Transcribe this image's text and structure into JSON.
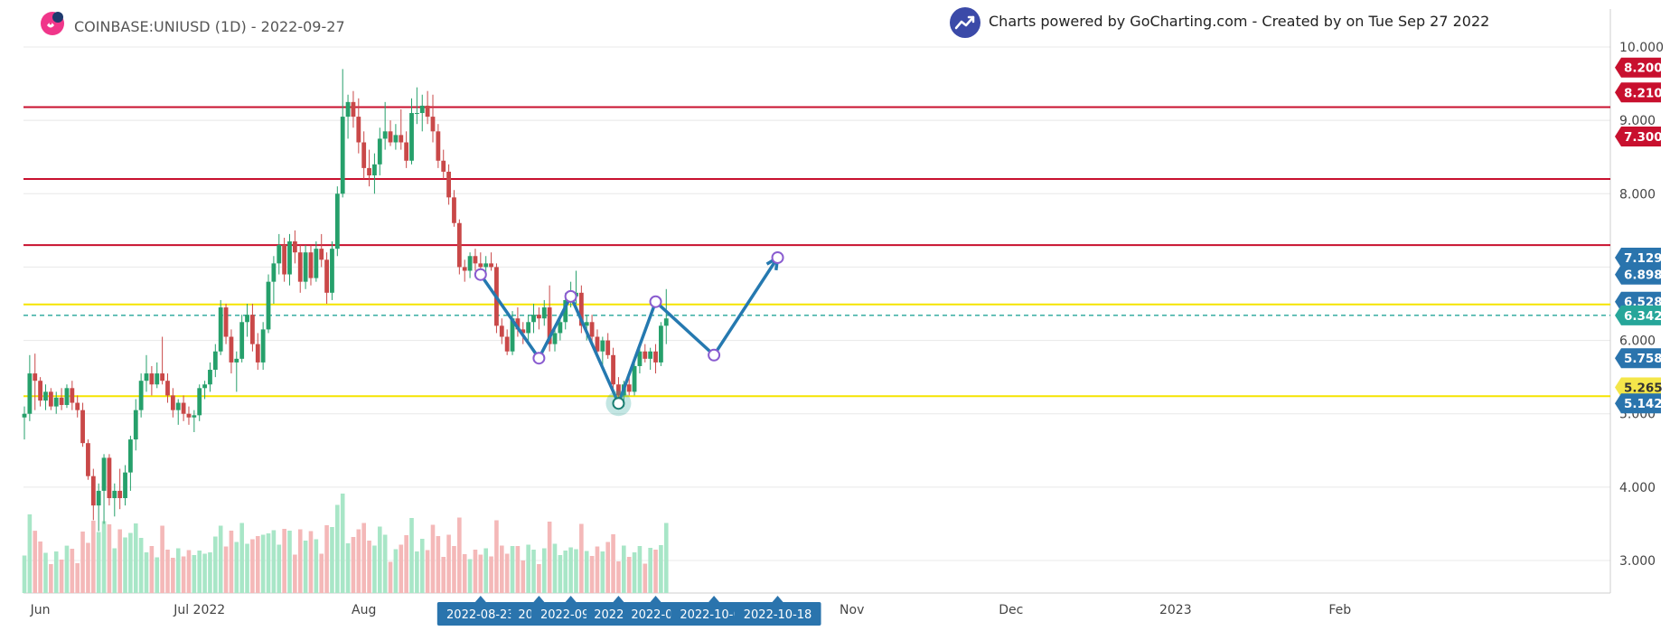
{
  "header": {
    "symbol_title": "COINBASE:UNIUSD (1D) - 2022-09-27",
    "credit": "Charts powered by GoCharting.com - Created by  on Tue Sep 27 2022"
  },
  "colors": {
    "up": "#26a06b",
    "down": "#c94848",
    "vol_up": "#a8e6c7",
    "vol_down": "#f4b8b8",
    "resistance_line": "#c8102e",
    "support_line": "#f5e400",
    "current_line": "#26a69a",
    "pattern_line": "#2579b0",
    "pattern_node": "#8a5cd0",
    "badge_red": "#c8102e",
    "badge_blue": "#2a74ad",
    "badge_green": "#26a69a",
    "badge_yellow": "#f4e64a",
    "axis_text": "#444444",
    "grid": "#e8e8e8"
  },
  "chart_data": {
    "type": "candlestick",
    "title": "COINBASE:UNIUSD (1D) - 2022-09-27",
    "xlabel": "",
    "ylabel": "",
    "ylim": [
      2.6,
      10.2
    ],
    "grid": true,
    "y_ticks": [
      "10.000",
      "9.000",
      "8.000",
      "6.000",
      "5.000",
      "4.000",
      "3.000"
    ],
    "x_ticks": [
      "Jun",
      "Jul 2022",
      "Aug",
      "Nov",
      "Dec",
      "2023",
      "Feb"
    ],
    "candles": [
      {
        "date": "2022-05-29",
        "o": 4.95,
        "h": 5.1,
        "l": 4.65,
        "c": 5.0
      },
      {
        "date": "2022-05-30",
        "o": 5.0,
        "h": 5.8,
        "l": 4.9,
        "c": 5.55
      },
      {
        "date": "2022-05-31",
        "o": 5.55,
        "h": 5.82,
        "l": 5.05,
        "c": 5.45
      },
      {
        "date": "2022-06-01",
        "o": 5.45,
        "h": 5.5,
        "l": 5.1,
        "c": 5.18
      },
      {
        "date": "2022-06-02",
        "o": 5.18,
        "h": 5.4,
        "l": 5.05,
        "c": 5.3
      },
      {
        "date": "2022-06-03",
        "o": 5.3,
        "h": 5.35,
        "l": 5.05,
        "c": 5.1
      },
      {
        "date": "2022-06-04",
        "o": 5.1,
        "h": 5.3,
        "l": 5.0,
        "c": 5.22
      },
      {
        "date": "2022-06-05",
        "o": 5.22,
        "h": 5.35,
        "l": 5.05,
        "c": 5.12
      },
      {
        "date": "2022-06-06",
        "o": 5.12,
        "h": 5.4,
        "l": 5.08,
        "c": 5.35
      },
      {
        "date": "2022-06-07",
        "o": 5.35,
        "h": 5.45,
        "l": 5.05,
        "c": 5.15
      },
      {
        "date": "2022-06-08",
        "o": 5.15,
        "h": 5.25,
        "l": 4.95,
        "c": 5.05
      },
      {
        "date": "2022-06-09",
        "o": 5.05,
        "h": 5.15,
        "l": 4.55,
        "c": 4.6
      },
      {
        "date": "2022-06-10",
        "o": 4.6,
        "h": 4.65,
        "l": 4.1,
        "c": 4.15
      },
      {
        "date": "2022-06-11",
        "o": 4.15,
        "h": 4.25,
        "l": 3.55,
        "c": 3.75
      },
      {
        "date": "2022-06-12",
        "o": 3.75,
        "h": 4.05,
        "l": 3.4,
        "c": 3.95
      },
      {
        "date": "2022-06-13",
        "o": 3.95,
        "h": 4.45,
        "l": 3.5,
        "c": 4.4
      },
      {
        "date": "2022-06-14",
        "o": 4.4,
        "h": 4.45,
        "l": 3.75,
        "c": 3.85
      },
      {
        "date": "2022-06-15",
        "o": 3.85,
        "h": 4.05,
        "l": 3.6,
        "c": 3.95
      },
      {
        "date": "2022-06-16",
        "o": 3.95,
        "h": 4.25,
        "l": 3.7,
        "c": 3.85
      },
      {
        "date": "2022-06-17",
        "o": 3.85,
        "h": 4.3,
        "l": 3.75,
        "c": 4.2
      },
      {
        "date": "2022-06-18",
        "o": 4.2,
        "h": 4.7,
        "l": 3.95,
        "c": 4.65
      },
      {
        "date": "2022-06-19",
        "o": 4.65,
        "h": 5.2,
        "l": 4.5,
        "c": 5.05
      },
      {
        "date": "2022-06-20",
        "o": 5.05,
        "h": 5.55,
        "l": 4.95,
        "c": 5.45
      },
      {
        "date": "2022-06-21",
        "o": 5.45,
        "h": 5.8,
        "l": 5.3,
        "c": 5.55
      },
      {
        "date": "2022-06-22",
        "o": 5.55,
        "h": 5.65,
        "l": 5.25,
        "c": 5.4
      },
      {
        "date": "2022-06-23",
        "o": 5.4,
        "h": 5.7,
        "l": 5.35,
        "c": 5.55
      },
      {
        "date": "2022-06-24",
        "o": 5.55,
        "h": 6.05,
        "l": 5.4,
        "c": 5.45
      },
      {
        "date": "2022-06-25",
        "o": 5.45,
        "h": 5.55,
        "l": 5.15,
        "c": 5.25
      },
      {
        "date": "2022-06-26",
        "o": 5.25,
        "h": 5.35,
        "l": 4.95,
        "c": 5.05
      },
      {
        "date": "2022-06-27",
        "o": 5.05,
        "h": 5.2,
        "l": 4.85,
        "c": 5.15
      },
      {
        "date": "2022-06-28",
        "o": 5.15,
        "h": 5.25,
        "l": 4.9,
        "c": 5.0
      },
      {
        "date": "2022-06-29",
        "o": 5.0,
        "h": 5.1,
        "l": 4.85,
        "c": 4.95
      },
      {
        "date": "2022-06-30",
        "o": 4.95,
        "h": 5.05,
        "l": 4.75,
        "c": 4.98
      },
      {
        "date": "2022-07-01",
        "o": 4.98,
        "h": 5.4,
        "l": 4.9,
        "c": 5.35
      },
      {
        "date": "2022-07-02",
        "o": 5.35,
        "h": 5.45,
        "l": 5.2,
        "c": 5.4
      },
      {
        "date": "2022-07-03",
        "o": 5.4,
        "h": 5.7,
        "l": 5.3,
        "c": 5.6
      },
      {
        "date": "2022-07-04",
        "o": 5.6,
        "h": 5.95,
        "l": 5.5,
        "c": 5.85
      },
      {
        "date": "2022-07-05",
        "o": 5.85,
        "h": 6.55,
        "l": 5.8,
        "c": 6.45
      },
      {
        "date": "2022-07-06",
        "o": 6.45,
        "h": 6.5,
        "l": 5.95,
        "c": 6.05
      },
      {
        "date": "2022-07-07",
        "o": 6.05,
        "h": 6.15,
        "l": 5.55,
        "c": 5.7
      },
      {
        "date": "2022-07-08",
        "o": 5.7,
        "h": 5.85,
        "l": 5.3,
        "c": 5.75
      },
      {
        "date": "2022-07-09",
        "o": 5.75,
        "h": 6.35,
        "l": 5.7,
        "c": 6.25
      },
      {
        "date": "2022-07-10",
        "o": 6.25,
        "h": 6.5,
        "l": 6.05,
        "c": 6.35
      },
      {
        "date": "2022-07-11",
        "o": 6.35,
        "h": 6.5,
        "l": 5.85,
        "c": 5.95
      },
      {
        "date": "2022-07-12",
        "o": 5.95,
        "h": 6.1,
        "l": 5.6,
        "c": 5.7
      },
      {
        "date": "2022-07-13",
        "o": 5.7,
        "h": 6.25,
        "l": 5.6,
        "c": 6.15
      },
      {
        "date": "2022-07-14",
        "o": 6.15,
        "h": 6.9,
        "l": 6.1,
        "c": 6.8
      },
      {
        "date": "2022-07-15",
        "o": 6.8,
        "h": 7.15,
        "l": 6.5,
        "c": 7.05
      },
      {
        "date": "2022-07-16",
        "o": 7.05,
        "h": 7.45,
        "l": 6.9,
        "c": 7.3
      },
      {
        "date": "2022-07-17",
        "o": 7.3,
        "h": 7.4,
        "l": 6.8,
        "c": 6.9
      },
      {
        "date": "2022-07-18",
        "o": 6.9,
        "h": 7.45,
        "l": 6.75,
        "c": 7.35
      },
      {
        "date": "2022-07-19",
        "o": 7.35,
        "h": 7.5,
        "l": 7.05,
        "c": 7.2
      },
      {
        "date": "2022-07-20",
        "o": 7.2,
        "h": 7.3,
        "l": 6.65,
        "c": 6.8
      },
      {
        "date": "2022-07-21",
        "o": 6.8,
        "h": 7.3,
        "l": 6.7,
        "c": 7.2
      },
      {
        "date": "2022-07-22",
        "o": 7.2,
        "h": 7.3,
        "l": 6.75,
        "c": 6.85
      },
      {
        "date": "2022-07-23",
        "o": 6.85,
        "h": 7.35,
        "l": 6.8,
        "c": 7.25
      },
      {
        "date": "2022-07-24",
        "o": 7.25,
        "h": 7.45,
        "l": 7.0,
        "c": 7.1
      },
      {
        "date": "2022-07-25",
        "o": 7.1,
        "h": 7.2,
        "l": 6.5,
        "c": 6.65
      },
      {
        "date": "2022-07-26",
        "o": 6.65,
        "h": 7.35,
        "l": 6.55,
        "c": 7.25
      },
      {
        "date": "2022-07-27",
        "o": 7.25,
        "h": 8.1,
        "l": 7.15,
        "c": 8.0
      },
      {
        "date": "2022-07-28",
        "o": 8.0,
        "h": 9.7,
        "l": 7.95,
        "c": 9.05
      },
      {
        "date": "2022-07-29",
        "o": 9.05,
        "h": 9.35,
        "l": 8.75,
        "c": 9.25
      },
      {
        "date": "2022-07-30",
        "o": 9.25,
        "h": 9.4,
        "l": 8.9,
        "c": 9.05
      },
      {
        "date": "2022-07-31",
        "o": 9.05,
        "h": 9.3,
        "l": 8.55,
        "c": 8.7
      },
      {
        "date": "2022-08-01",
        "o": 8.7,
        "h": 8.85,
        "l": 8.2,
        "c": 8.35
      },
      {
        "date": "2022-08-02",
        "o": 8.35,
        "h": 8.6,
        "l": 8.1,
        "c": 8.25
      },
      {
        "date": "2022-08-03",
        "o": 8.25,
        "h": 8.55,
        "l": 8.0,
        "c": 8.4
      },
      {
        "date": "2022-08-04",
        "o": 8.4,
        "h": 8.9,
        "l": 8.25,
        "c": 8.75
      },
      {
        "date": "2022-08-05",
        "o": 8.75,
        "h": 9.25,
        "l": 8.6,
        "c": 8.85
      },
      {
        "date": "2022-08-06",
        "o": 8.85,
        "h": 9.0,
        "l": 8.65,
        "c": 8.7
      },
      {
        "date": "2022-08-07",
        "o": 8.7,
        "h": 8.95,
        "l": 8.6,
        "c": 8.8
      },
      {
        "date": "2022-08-08",
        "o": 8.8,
        "h": 9.15,
        "l": 8.6,
        "c": 8.7
      },
      {
        "date": "2022-08-09",
        "o": 8.7,
        "h": 8.85,
        "l": 8.35,
        "c": 8.45
      },
      {
        "date": "2022-08-10",
        "o": 8.45,
        "h": 9.3,
        "l": 8.4,
        "c": 9.1
      },
      {
        "date": "2022-08-11",
        "o": 9.1,
        "h": 9.45,
        "l": 8.95,
        "c": 9.1
      },
      {
        "date": "2022-08-12",
        "o": 9.1,
        "h": 9.35,
        "l": 8.85,
        "c": 9.2
      },
      {
        "date": "2022-08-13",
        "o": 9.2,
        "h": 9.4,
        "l": 8.95,
        "c": 9.05
      },
      {
        "date": "2022-08-14",
        "o": 9.05,
        "h": 9.35,
        "l": 8.7,
        "c": 8.85
      },
      {
        "date": "2022-08-15",
        "o": 8.85,
        "h": 8.95,
        "l": 8.35,
        "c": 8.45
      },
      {
        "date": "2022-08-16",
        "o": 8.45,
        "h": 8.6,
        "l": 8.2,
        "c": 8.3
      },
      {
        "date": "2022-08-17",
        "o": 8.3,
        "h": 8.4,
        "l": 7.85,
        "c": 7.95
      },
      {
        "date": "2022-08-18",
        "o": 7.95,
        "h": 8.05,
        "l": 7.55,
        "c": 7.6
      },
      {
        "date": "2022-08-19",
        "o": 7.6,
        "h": 7.65,
        "l": 6.9,
        "c": 7.0
      },
      {
        "date": "2022-08-20",
        "o": 7.0,
        "h": 7.1,
        "l": 6.8,
        "c": 6.95
      },
      {
        "date": "2022-08-21",
        "o": 6.95,
        "h": 7.2,
        "l": 6.85,
        "c": 7.15
      },
      {
        "date": "2022-08-22",
        "o": 7.15,
        "h": 7.25,
        "l": 6.95,
        "c": 7.05
      },
      {
        "date": "2022-08-23",
        "o": 7.05,
        "h": 7.2,
        "l": 6.85,
        "c": 7.0
      },
      {
        "date": "2022-08-24",
        "o": 7.0,
        "h": 7.15,
        "l": 6.9,
        "c": 7.05
      },
      {
        "date": "2022-08-25",
        "o": 7.05,
        "h": 7.2,
        "l": 6.95,
        "c": 7.0
      },
      {
        "date": "2022-08-26",
        "o": 7.0,
        "h": 7.05,
        "l": 6.1,
        "c": 6.2
      },
      {
        "date": "2022-08-27",
        "o": 6.2,
        "h": 6.3,
        "l": 5.95,
        "c": 6.05
      },
      {
        "date": "2022-08-28",
        "o": 6.05,
        "h": 6.15,
        "l": 5.8,
        "c": 5.85
      },
      {
        "date": "2022-08-29",
        "o": 5.85,
        "h": 6.4,
        "l": 5.8,
        "c": 6.3
      },
      {
        "date": "2022-08-30",
        "o": 6.3,
        "h": 6.45,
        "l": 6.05,
        "c": 6.15
      },
      {
        "date": "2022-08-31",
        "o": 6.15,
        "h": 6.25,
        "l": 5.95,
        "c": 6.1
      },
      {
        "date": "2022-09-01",
        "o": 6.1,
        "h": 6.35,
        "l": 6.0,
        "c": 6.25
      },
      {
        "date": "2022-09-02",
        "o": 6.25,
        "h": 6.5,
        "l": 6.1,
        "c": 6.35
      },
      {
        "date": "2022-09-03",
        "o": 6.35,
        "h": 6.45,
        "l": 6.15,
        "c": 6.3
      },
      {
        "date": "2022-09-04",
        "o": 6.3,
        "h": 6.55,
        "l": 6.2,
        "c": 6.45
      },
      {
        "date": "2022-09-05",
        "o": 6.45,
        "h": 6.75,
        "l": 5.85,
        "c": 5.95
      },
      {
        "date": "2022-09-06",
        "o": 5.95,
        "h": 6.2,
        "l": 5.85,
        "c": 6.1
      },
      {
        "date": "2022-09-07",
        "o": 6.1,
        "h": 6.3,
        "l": 6.0,
        "c": 6.25
      },
      {
        "date": "2022-09-08",
        "o": 6.25,
        "h": 6.65,
        "l": 6.15,
        "c": 6.55
      },
      {
        "date": "2022-09-09",
        "o": 6.55,
        "h": 6.8,
        "l": 6.45,
        "c": 6.6
      },
      {
        "date": "2022-09-10",
        "o": 6.6,
        "h": 6.95,
        "l": 6.5,
        "c": 6.65
      },
      {
        "date": "2022-09-11",
        "o": 6.65,
        "h": 6.75,
        "l": 6.1,
        "c": 6.2
      },
      {
        "date": "2022-09-12",
        "o": 6.2,
        "h": 6.35,
        "l": 6.0,
        "c": 6.25
      },
      {
        "date": "2022-09-13",
        "o": 6.25,
        "h": 6.35,
        "l": 5.95,
        "c": 6.05
      },
      {
        "date": "2022-09-14",
        "o": 6.05,
        "h": 6.15,
        "l": 5.8,
        "c": 5.85
      },
      {
        "date": "2022-09-15",
        "o": 5.85,
        "h": 6.05,
        "l": 5.65,
        "c": 6.0
      },
      {
        "date": "2022-09-16",
        "o": 6.0,
        "h": 6.1,
        "l": 5.75,
        "c": 5.8
      },
      {
        "date": "2022-09-17",
        "o": 5.8,
        "h": 5.9,
        "l": 5.3,
        "c": 5.4
      },
      {
        "date": "2022-09-18",
        "o": 5.4,
        "h": 5.5,
        "l": 5.2,
        "c": 5.25
      },
      {
        "date": "2022-09-19",
        "o": 5.25,
        "h": 5.45,
        "l": 5.1,
        "c": 5.4
      },
      {
        "date": "2022-09-20",
        "o": 5.4,
        "h": 5.55,
        "l": 5.25,
        "c": 5.3
      },
      {
        "date": "2022-09-21",
        "o": 5.3,
        "h": 5.75,
        "l": 5.25,
        "c": 5.65
      },
      {
        "date": "2022-09-22",
        "o": 5.65,
        "h": 5.95,
        "l": 5.55,
        "c": 5.85
      },
      {
        "date": "2022-09-23",
        "o": 5.85,
        "h": 5.95,
        "l": 5.7,
        "c": 5.75
      },
      {
        "date": "2022-09-24",
        "o": 5.75,
        "h": 5.9,
        "l": 5.6,
        "c": 5.85
      },
      {
        "date": "2022-09-25",
        "o": 5.85,
        "h": 5.95,
        "l": 5.55,
        "c": 5.7
      },
      {
        "date": "2022-09-26",
        "o": 5.7,
        "h": 6.25,
        "l": 5.65,
        "c": 6.2
      },
      {
        "date": "2022-09-27",
        "o": 6.2,
        "h": 6.7,
        "l": 5.95,
        "c": 6.3
      }
    ],
    "volume_scale": [
      0,
      1
    ],
    "horizontal_levels": [
      {
        "value": 9.18,
        "color_key": "resistance_line"
      },
      {
        "value": 8.2,
        "color_key": "resistance_line"
      },
      {
        "value": 7.3,
        "color_key": "resistance_line"
      },
      {
        "value": 6.49,
        "color_key": "support_line"
      },
      {
        "value": 5.24,
        "color_key": "support_line"
      },
      {
        "value": 6.342,
        "color_key": "current_line",
        "dashed": true
      }
    ],
    "pattern_points": [
      {
        "date": "2022-08-23",
        "value": 6.898
      },
      {
        "date": "2022-09-03",
        "value": 5.758
      },
      {
        "date": "2022-09-09",
        "value": 6.6
      },
      {
        "date": "2022-09-18",
        "value": 5.142
      },
      {
        "date": "2022-09-25",
        "value": 6.528
      },
      {
        "date": "2022-10-06",
        "value": 5.8
      },
      {
        "date": "2022-10-18",
        "value": 7.129
      }
    ],
    "price_badges": [
      {
        "label": "8.200",
        "value": 9.72,
        "color_key": "badge_red"
      },
      {
        "label": "8.210",
        "value": 9.38,
        "color_key": "badge_red"
      },
      {
        "label": "7.300",
        "value": 8.78,
        "color_key": "badge_red"
      },
      {
        "label": "7.129",
        "value": 7.129,
        "color_key": "badge_blue"
      },
      {
        "label": "6.898",
        "value": 6.898,
        "color_key": "badge_blue"
      },
      {
        "label": "6.528",
        "value": 6.528,
        "color_key": "badge_blue"
      },
      {
        "label": "6.342",
        "value": 6.342,
        "color_key": "badge_green"
      },
      {
        "label": "5.758",
        "value": 5.758,
        "color_key": "badge_blue"
      },
      {
        "label": "5.265",
        "value": 5.36,
        "color_key": "badge_yellow"
      },
      {
        "label": "5.142",
        "value": 5.142,
        "color_key": "badge_blue"
      }
    ],
    "date_badges": [
      "2022-08-23",
      "2022-0",
      "2022-09-1",
      "2022-09",
      "2022-09",
      "2022-10-06",
      "2022-10-18"
    ]
  }
}
